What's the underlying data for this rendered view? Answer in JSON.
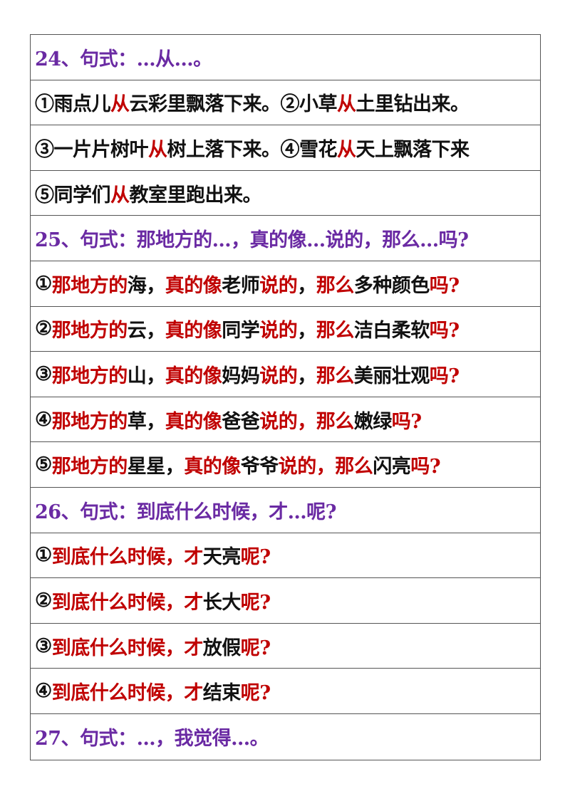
{
  "rows": [
    {
      "type": "heading",
      "segments": [
        {
          "t": "24、句式：…从…。",
          "c": "p"
        }
      ]
    },
    {
      "type": "item",
      "segments": [
        {
          "t": "①雨点儿",
          "c": "k"
        },
        {
          "t": "从",
          "c": "r"
        },
        {
          "t": "云彩里飘落下来。②小草",
          "c": "k"
        },
        {
          "t": "从",
          "c": "r"
        },
        {
          "t": "土里钻出来。",
          "c": "k"
        }
      ]
    },
    {
      "type": "item",
      "segments": [
        {
          "t": "③一片片树叶",
          "c": "k"
        },
        {
          "t": "从",
          "c": "r"
        },
        {
          "t": "树上落下来。④雪花",
          "c": "k"
        },
        {
          "t": "从",
          "c": "r"
        },
        {
          "t": "天上飘落下来",
          "c": "k"
        }
      ]
    },
    {
      "type": "item",
      "segments": [
        {
          "t": "⑤同学们",
          "c": "k"
        },
        {
          "t": "从",
          "c": "r"
        },
        {
          "t": "教室里跑出来。",
          "c": "k"
        }
      ]
    },
    {
      "type": "heading",
      "segments": [
        {
          "t": "25、句式：那地方的…，真的像…说的，那么…吗?",
          "c": "p"
        }
      ]
    },
    {
      "type": "item",
      "segments": [
        {
          "t": "①",
          "c": "k"
        },
        {
          "t": "那地方的",
          "c": "r"
        },
        {
          "t": "海，",
          "c": "k"
        },
        {
          "t": "真的像",
          "c": "r"
        },
        {
          "t": "老师",
          "c": "k"
        },
        {
          "t": "说的",
          "c": "r"
        },
        {
          "t": "，",
          "c": "k"
        },
        {
          "t": "那么",
          "c": "r"
        },
        {
          "t": "多种颜色",
          "c": "k"
        },
        {
          "t": "吗?",
          "c": "r"
        }
      ]
    },
    {
      "type": "item",
      "segments": [
        {
          "t": "②",
          "c": "k"
        },
        {
          "t": "那地方的",
          "c": "r"
        },
        {
          "t": "云，",
          "c": "k"
        },
        {
          "t": "真的像",
          "c": "r"
        },
        {
          "t": "同学",
          "c": "k"
        },
        {
          "t": "说的",
          "c": "r"
        },
        {
          "t": "，",
          "c": "k"
        },
        {
          "t": "那么",
          "c": "r"
        },
        {
          "t": "洁白柔软",
          "c": "k"
        },
        {
          "t": "吗?",
          "c": "r"
        }
      ]
    },
    {
      "type": "item",
      "segments": [
        {
          "t": "③",
          "c": "k"
        },
        {
          "t": "那地方的",
          "c": "r"
        },
        {
          "t": "山，",
          "c": "k"
        },
        {
          "t": "真的像",
          "c": "r"
        },
        {
          "t": "妈妈",
          "c": "k"
        },
        {
          "t": "说的",
          "c": "r"
        },
        {
          "t": "，",
          "c": "k"
        },
        {
          "t": "那么",
          "c": "r"
        },
        {
          "t": "美丽壮观",
          "c": "k"
        },
        {
          "t": "吗?",
          "c": "r"
        }
      ]
    },
    {
      "type": "item",
      "segments": [
        {
          "t": "④",
          "c": "k"
        },
        {
          "t": "那地方的",
          "c": "r"
        },
        {
          "t": "草，",
          "c": "k"
        },
        {
          "t": "真的像",
          "c": "r"
        },
        {
          "t": "爸爸",
          "c": "k"
        },
        {
          "t": "说的，那么",
          "c": "r"
        },
        {
          "t": "嫩绿",
          "c": "k"
        },
        {
          "t": "吗?",
          "c": "r"
        }
      ]
    },
    {
      "type": "item",
      "segments": [
        {
          "t": "⑤",
          "c": "k"
        },
        {
          "t": "那地方的",
          "c": "r"
        },
        {
          "t": "星星，",
          "c": "k"
        },
        {
          "t": "真的像",
          "c": "r"
        },
        {
          "t": "爷爷",
          "c": "k"
        },
        {
          "t": "说的，那么",
          "c": "r"
        },
        {
          "t": "闪亮",
          "c": "k"
        },
        {
          "t": "吗?",
          "c": "r"
        }
      ]
    },
    {
      "type": "heading",
      "segments": [
        {
          "t": "26、句式：到底什么时候，才…呢?",
          "c": "p"
        }
      ]
    },
    {
      "type": "item",
      "segments": [
        {
          "t": "①",
          "c": "k"
        },
        {
          "t": "到底什么时候，才",
          "c": "r"
        },
        {
          "t": "天亮",
          "c": "k"
        },
        {
          "t": "呢?",
          "c": "r"
        }
      ]
    },
    {
      "type": "item",
      "segments": [
        {
          "t": "②",
          "c": "k"
        },
        {
          "t": "到底什么时候，才",
          "c": "r"
        },
        {
          "t": "长大",
          "c": "k"
        },
        {
          "t": "呢?",
          "c": "r"
        }
      ]
    },
    {
      "type": "item",
      "segments": [
        {
          "t": "③",
          "c": "k"
        },
        {
          "t": "到底什么时候，才",
          "c": "r"
        },
        {
          "t": "放假",
          "c": "k"
        },
        {
          "t": "呢?",
          "c": "r"
        }
      ]
    },
    {
      "type": "item",
      "segments": [
        {
          "t": "④",
          "c": "k"
        },
        {
          "t": "到底什么时候，才",
          "c": "r"
        },
        {
          "t": "结束",
          "c": "k"
        },
        {
          "t": "呢?",
          "c": "r"
        }
      ]
    },
    {
      "type": "heading",
      "segments": [
        {
          "t": "27、句式：…，我觉得…。",
          "c": "p"
        }
      ]
    }
  ],
  "colors": {
    "purple": "#6a2aa3",
    "red": "#c00000",
    "black": "#111111"
  }
}
